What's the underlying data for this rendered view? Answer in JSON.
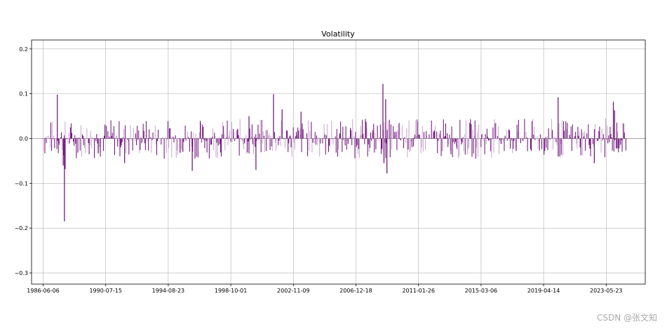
{
  "chart_data": {
    "type": "bar",
    "title": "Volatility",
    "xlabel": "",
    "ylabel": "",
    "ylim": [
      -0.325,
      0.22
    ],
    "xlim": [
      "1985-09-01",
      "2025-12-15"
    ],
    "yticks": [
      0.2,
      0.1,
      0.0,
      -0.1,
      -0.2,
      -0.3
    ],
    "ytick_labels": [
      "0.2",
      "0.1",
      "0.0",
      "−0.1",
      "−0.2",
      "−0.3"
    ],
    "xticks": [
      "1986-06-06",
      "1990-07-15",
      "1994-08-23",
      "1998-10-01",
      "2002-11-09",
      "2006-12-18",
      "2011-01-26",
      "2015-03-06",
      "2019-04-14",
      "2023-05-23"
    ],
    "grid": true,
    "colors": {
      "positive_dark": "#6a0a75",
      "light": "#c9a3cf",
      "grid": "#b0b0b0",
      "zero_line": "#888888"
    },
    "notable_points": [
      {
        "x": "1987-05-01",
        "y": 0.098
      },
      {
        "x": "1987-09-20",
        "y": -0.06
      },
      {
        "x": "1987-10-19",
        "y": -0.185
      },
      {
        "x": "1987-11-05",
        "y": -0.068
      },
      {
        "x": "1991-10-01",
        "y": -0.055
      },
      {
        "x": "1996-03-10",
        "y": -0.072
      },
      {
        "x": "1999-12-01",
        "y": 0.05
      },
      {
        "x": "2000-05-15",
        "y": -0.07
      },
      {
        "x": "2001-07-10",
        "y": 0.099
      },
      {
        "x": "2002-02-01",
        "y": 0.065
      },
      {
        "x": "2003-05-01",
        "y": 0.06
      },
      {
        "x": "2008-09-15",
        "y": 0.122
      },
      {
        "x": "2008-10-10",
        "y": -0.055
      },
      {
        "x": "2008-11-20",
        "y": 0.088
      },
      {
        "x": "2008-12-20",
        "y": -0.078
      },
      {
        "x": "2020-03-16",
        "y": 0.092
      },
      {
        "x": "2020-03-20",
        "y": -0.04
      },
      {
        "x": "2022-08-01",
        "y": -0.055
      },
      {
        "x": "2023-11-01",
        "y": 0.082
      },
      {
        "x": "2023-12-01",
        "y": 0.063
      },
      {
        "x": "2024-02-01",
        "y": -0.022
      }
    ]
  },
  "watermark": "CSDN @张文知"
}
